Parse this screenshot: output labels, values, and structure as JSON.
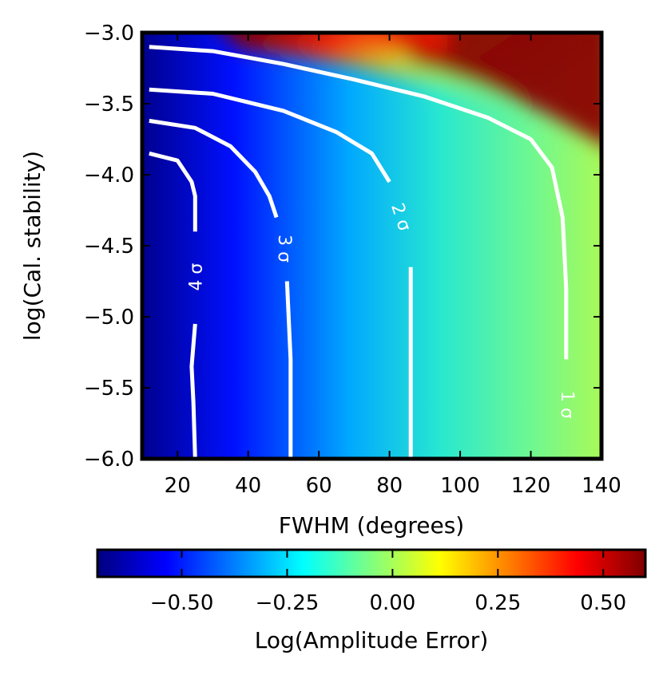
{
  "chart_data": {
    "type": "heatmap",
    "title": "",
    "xlabel": "FWHM (degrees)",
    "ylabel": "log(Cal. stability)",
    "xlim": [
      10,
      140
    ],
    "ylim": [
      -6.0,
      -3.0
    ],
    "x_ticks": [
      20,
      40,
      60,
      80,
      100,
      120,
      140
    ],
    "x_tick_labels": [
      "20",
      "40",
      "60",
      "80",
      "100",
      "120",
      "140"
    ],
    "y_ticks": [
      -3.0,
      -3.5,
      -4.0,
      -4.5,
      -5.0,
      -5.5,
      -6.0
    ],
    "y_tick_labels": [
      "−3.0",
      "−3.5",
      "−4.0",
      "−4.5",
      "−5.0",
      "−5.5",
      "−6.0"
    ],
    "colorbar": {
      "label": "Log(Amplitude Error)",
      "range": [
        -0.7,
        0.6
      ],
      "ticks": [
        -0.5,
        -0.25,
        0.0,
        0.25,
        0.5
      ],
      "tick_labels": [
        "−0.50",
        "−0.25",
        "0.00",
        "0.25",
        "0.50"
      ],
      "colormap": "jet"
    },
    "contours": [
      {
        "label": "1 σ",
        "gap": [
          -5.3,
          -6.0
        ],
        "points": [
          [
            12,
            -3.1
          ],
          [
            30,
            -3.13
          ],
          [
            50,
            -3.22
          ],
          [
            70,
            -3.33
          ],
          [
            90,
            -3.45
          ],
          [
            108,
            -3.6
          ],
          [
            120,
            -3.75
          ],
          [
            126,
            -3.95
          ],
          [
            129,
            -4.3
          ],
          [
            130,
            -4.8
          ],
          [
            130,
            -5.3
          ]
        ]
      },
      {
        "label": "2 σ",
        "gap": [
          -4.1,
          -4.6
        ],
        "points": [
          [
            12,
            -3.4
          ],
          [
            30,
            -3.43
          ],
          [
            50,
            -3.55
          ],
          [
            65,
            -3.7
          ],
          [
            75,
            -3.85
          ],
          [
            80,
            -4.05
          ],
          [
            86,
            -4.65
          ],
          [
            86,
            -5.2
          ],
          [
            86,
            -6.0
          ]
        ]
      },
      {
        "label": "3 σ",
        "gap": [
          -4.3,
          -4.75
        ],
        "points": [
          [
            12,
            -3.62
          ],
          [
            25,
            -3.67
          ],
          [
            35,
            -3.8
          ],
          [
            42,
            -3.98
          ],
          [
            46,
            -4.15
          ],
          [
            48,
            -4.3
          ],
          [
            51,
            -4.75
          ],
          [
            52,
            -5.3
          ],
          [
            52,
            -6.0
          ]
        ]
      },
      {
        "label": "4 σ",
        "gap": [
          -4.4,
          -5.05
        ],
        "points": [
          [
            12,
            -3.85
          ],
          [
            20,
            -3.9
          ],
          [
            24,
            -4.05
          ],
          [
            25,
            -4.15
          ],
          [
            25,
            -4.4
          ],
          [
            25,
            -5.05
          ],
          [
            24,
            -5.35
          ],
          [
            24.5,
            -5.6
          ],
          [
            25,
            -6.0
          ]
        ]
      }
    ],
    "contour_label_positions": [
      {
        "label": "4 σ",
        "x": 25.5,
        "y": -4.72,
        "angle": -90
      },
      {
        "label": "3 σ",
        "x": 50,
        "y": -4.52,
        "angle": 90
      },
      {
        "label": "2 σ",
        "x": 83,
        "y": -4.3,
        "angle": 72
      },
      {
        "label": "1 σ",
        "x": 130,
        "y": -5.62,
        "angle": 90
      }
    ]
  }
}
